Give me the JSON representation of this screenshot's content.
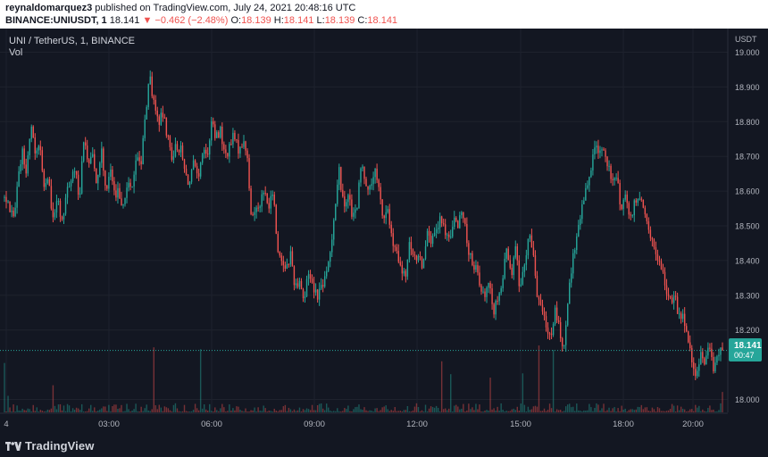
{
  "header": {
    "author": "reynaldomarquez3",
    "published_text": "published on TradingView.com, July 24, 2021 20:48:16 UTC",
    "symbol": "BINANCE:UNIUSDT, 1",
    "last_price": "18.141",
    "change": "−0.462 (−2.48%)",
    "open_label": "O:",
    "open_value": "18.139",
    "high_label": "H:",
    "high_value": "18.141",
    "low_label": "L:",
    "low_value": "18.139",
    "close_label": "C:",
    "close_value": "18.141"
  },
  "pane": {
    "title": "UNI / TetherUS, 1, BINANCE",
    "volume_label": "Vol"
  },
  "footer": {
    "brand": "TradingView"
  },
  "colors": {
    "background": "#131722",
    "grid": "#1e222d",
    "up": "#26a69a",
    "down": "#ef5350",
    "price_badge": "#26a69a",
    "text": "#d1d4dc",
    "axis_text": "#b2b5be"
  },
  "chart_data": {
    "type": "candlestick",
    "currency": "USDT",
    "ylim": [
      17.97,
      19.01
    ],
    "yticks": [
      "19.000",
      "18.900",
      "18.800",
      "18.700",
      "18.600",
      "18.500",
      "18.400",
      "18.300",
      "18.200",
      "18.000"
    ],
    "xticks": [
      "4",
      "03:00",
      "06:00",
      "09:00",
      "12:00",
      "15:00",
      "18:00",
      "20:00"
    ],
    "last_price_label": "18.141",
    "countdown": "00:47",
    "price_path": [
      [
        0,
        18.58
      ],
      [
        2,
        18.52
      ],
      [
        4,
        18.72
      ],
      [
        5,
        18.65
      ],
      [
        6,
        18.8
      ],
      [
        7,
        18.7
      ],
      [
        8,
        18.75
      ],
      [
        9,
        18.6
      ],
      [
        10,
        18.63
      ],
      [
        11,
        18.52
      ],
      [
        12,
        18.58
      ],
      [
        13,
        18.5
      ],
      [
        14,
        18.6
      ],
      [
        15,
        18.63
      ],
      [
        16,
        18.66
      ],
      [
        17,
        18.58
      ],
      [
        18,
        18.75
      ],
      [
        19,
        18.68
      ],
      [
        20,
        18.72
      ],
      [
        21,
        18.62
      ],
      [
        22,
        18.73
      ],
      [
        23,
        18.6
      ],
      [
        24,
        18.67
      ],
      [
        25,
        18.58
      ],
      [
        26,
        18.6
      ],
      [
        27,
        18.55
      ],
      [
        28,
        18.63
      ],
      [
        29,
        18.62
      ],
      [
        30,
        18.7
      ],
      [
        31,
        18.68
      ],
      [
        32,
        18.82
      ],
      [
        33,
        18.93
      ],
      [
        34,
        18.84
      ],
      [
        35,
        18.8
      ],
      [
        36,
        18.82
      ],
      [
        37,
        18.76
      ],
      [
        38,
        18.7
      ],
      [
        39,
        18.73
      ],
      [
        40,
        18.72
      ],
      [
        41,
        18.65
      ],
      [
        42,
        18.62
      ],
      [
        43,
        18.68
      ],
      [
        44,
        18.62
      ],
      [
        45,
        18.72
      ],
      [
        46,
        18.7
      ],
      [
        47,
        18.8
      ],
      [
        48,
        18.75
      ],
      [
        49,
        18.78
      ],
      [
        50,
        18.7
      ],
      [
        51,
        18.72
      ],
      [
        52,
        18.76
      ],
      [
        53,
        18.72
      ],
      [
        54,
        18.74
      ],
      [
        55,
        18.72
      ],
      [
        56,
        18.52
      ],
      [
        57,
        18.55
      ],
      [
        58,
        18.57
      ],
      [
        59,
        18.6
      ],
      [
        60,
        18.55
      ],
      [
        61,
        18.6
      ],
      [
        62,
        18.43
      ],
      [
        63,
        18.4
      ],
      [
        64,
        18.38
      ],
      [
        65,
        18.42
      ],
      [
        66,
        18.32
      ],
      [
        67,
        18.35
      ],
      [
        68,
        18.28
      ],
      [
        69,
        18.37
      ],
      [
        70,
        18.33
      ],
      [
        71,
        18.3
      ],
      [
        72,
        18.33
      ],
      [
        73,
        18.35
      ],
      [
        74,
        18.43
      ],
      [
        75,
        18.55
      ],
      [
        76,
        18.66
      ],
      [
        77,
        18.55
      ],
      [
        78,
        18.6
      ],
      [
        79,
        18.52
      ],
      [
        80,
        18.55
      ],
      [
        81,
        18.68
      ],
      [
        82,
        18.63
      ],
      [
        83,
        18.6
      ],
      [
        84,
        18.66
      ],
      [
        85,
        18.6
      ],
      [
        86,
        18.52
      ],
      [
        87,
        18.55
      ],
      [
        88,
        18.45
      ],
      [
        89,
        18.42
      ],
      [
        90,
        18.37
      ],
      [
        91,
        18.35
      ],
      [
        92,
        18.45
      ],
      [
        93,
        18.4
      ],
      [
        94,
        18.42
      ],
      [
        95,
        18.38
      ],
      [
        96,
        18.5
      ],
      [
        97,
        18.45
      ],
      [
        98,
        18.48
      ],
      [
        99,
        18.52
      ],
      [
        100,
        18.48
      ],
      [
        101,
        18.46
      ],
      [
        102,
        18.53
      ],
      [
        103,
        18.5
      ],
      [
        104,
        18.55
      ],
      [
        105,
        18.45
      ],
      [
        106,
        18.4
      ],
      [
        107,
        18.38
      ],
      [
        108,
        18.33
      ],
      [
        109,
        18.3
      ],
      [
        110,
        18.35
      ],
      [
        111,
        18.25
      ],
      [
        112,
        18.3
      ],
      [
        113,
        18.33
      ],
      [
        114,
        18.45
      ],
      [
        115,
        18.35
      ],
      [
        116,
        18.45
      ],
      [
        117,
        18.32
      ],
      [
        118,
        18.38
      ],
      [
        119,
        18.48
      ],
      [
        120,
        18.42
      ],
      [
        121,
        18.3
      ],
      [
        122,
        18.25
      ],
      [
        123,
        18.22
      ],
      [
        124,
        18.18
      ],
      [
        125,
        18.25
      ],
      [
        126,
        18.2
      ],
      [
        127,
        18.14
      ],
      [
        128,
        18.3
      ],
      [
        129,
        18.4
      ],
      [
        130,
        18.48
      ],
      [
        131,
        18.55
      ],
      [
        132,
        18.6
      ],
      [
        133,
        18.64
      ],
      [
        134,
        18.74
      ],
      [
        135,
        18.7
      ],
      [
        136,
        18.72
      ],
      [
        137,
        18.68
      ],
      [
        138,
        18.62
      ],
      [
        139,
        18.64
      ],
      [
        140,
        18.55
      ],
      [
        141,
        18.58
      ],
      [
        142,
        18.52
      ],
      [
        143,
        18.56
      ],
      [
        144,
        18.6
      ],
      [
        145,
        18.55
      ],
      [
        146,
        18.5
      ],
      [
        147,
        18.45
      ],
      [
        148,
        18.4
      ],
      [
        149,
        18.38
      ],
      [
        150,
        18.33
      ],
      [
        151,
        18.28
      ],
      [
        152,
        18.3
      ],
      [
        153,
        18.25
      ],
      [
        154,
        18.24
      ],
      [
        155,
        18.2
      ],
      [
        156,
        18.1
      ],
      [
        157,
        18.07
      ],
      [
        158,
        18.13
      ],
      [
        159,
        18.1
      ],
      [
        160,
        18.15
      ],
      [
        161,
        18.08
      ],
      [
        162,
        18.14
      ],
      [
        163,
        18.14
      ]
    ]
  }
}
